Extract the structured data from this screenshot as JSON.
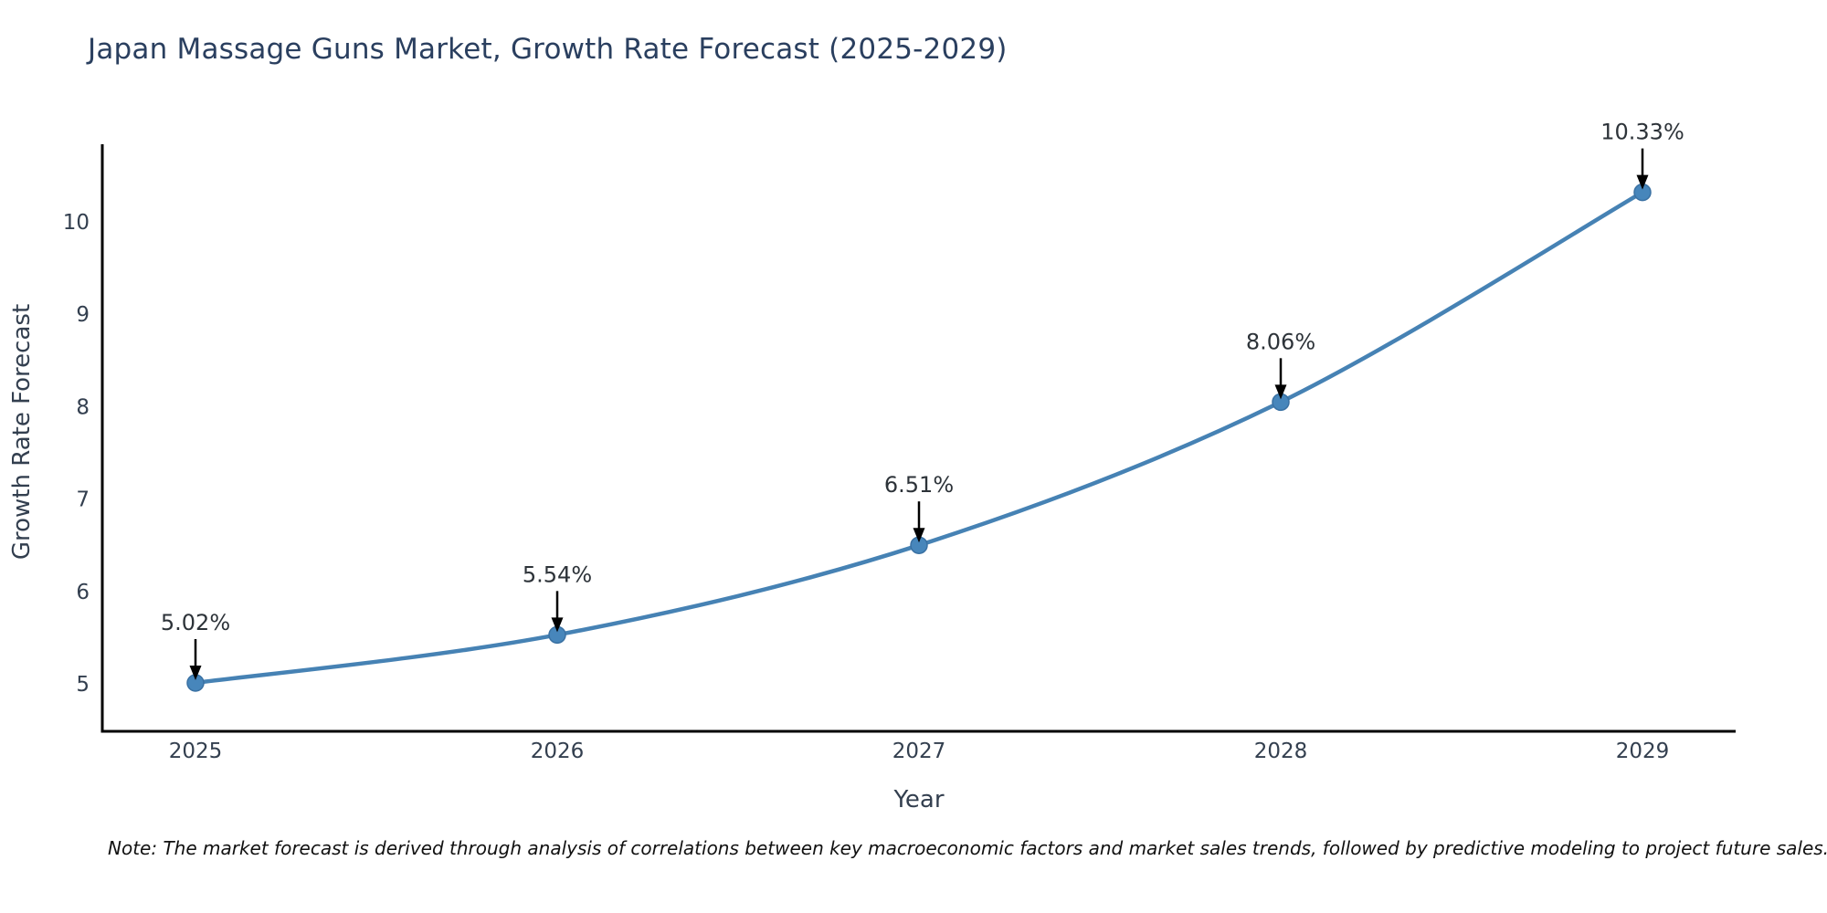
{
  "figure": {
    "title": "Japan Massage Guns Market, Growth Rate Forecast (2025-2029)",
    "note": "Note: The market forecast is derived through analysis of correlations between key macroeconomic factors and market sales trends, followed by predictive modeling to project future sales."
  },
  "colors": {
    "background": "#ffffff",
    "title_text": "#2a3f5f",
    "axis_text": "#333f4f",
    "spine": "#000000",
    "line": "#4682b4",
    "marker_fill": "#4786bb",
    "marker_edge": "#3a71a3",
    "annotation_text": "#2d3339",
    "arrow": "#000000",
    "note_text": "#111111"
  },
  "chart_data": {
    "type": "line",
    "title": "Japan Massage Guns Market, Growth Rate Forecast (2025-2029)",
    "xlabel": "Year",
    "ylabel": "Growth Rate Forecast",
    "categories": [
      "2025",
      "2026",
      "2027",
      "2028",
      "2029"
    ],
    "values": [
      5.02,
      5.54,
      6.51,
      8.06,
      10.33
    ],
    "annotations": [
      "5.02%",
      "5.54%",
      "6.51%",
      "8.06%",
      "10.33%"
    ],
    "series_name": "Growth Rate Forecast",
    "y_ticks": [
      5,
      6,
      7,
      8,
      9,
      10
    ],
    "ylim": [
      4.5,
      10.85
    ],
    "grid": false,
    "legend_position": "none",
    "curve": "smooth",
    "marker": "circle",
    "annotation_arrows": "down"
  }
}
